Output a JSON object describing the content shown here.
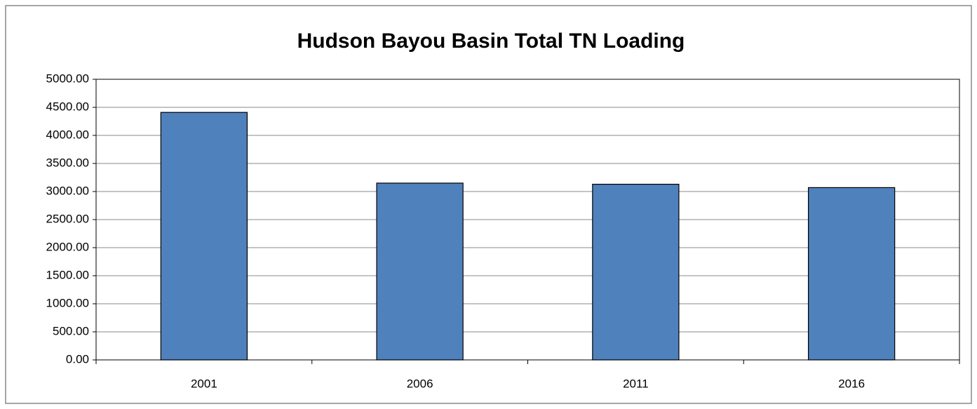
{
  "chart_data": {
    "type": "bar",
    "title": "Hudson Bayou Basin Total TN Loading",
    "categories": [
      "2001",
      "2006",
      "2011",
      "2016"
    ],
    "values": [
      4410,
      3150,
      3130,
      3070
    ],
    "color": "#4f81bd",
    "ylim": [
      0,
      5000
    ],
    "yticks": [
      {
        "value": 0,
        "label": "0.00"
      },
      {
        "value": 500,
        "label": "500.00"
      },
      {
        "value": 1000,
        "label": "1000.00"
      },
      {
        "value": 1500,
        "label": "1500.00"
      },
      {
        "value": 2000,
        "label": "2000.00"
      },
      {
        "value": 2500,
        "label": "2500.00"
      },
      {
        "value": 3000,
        "label": "3000.00"
      },
      {
        "value": 3500,
        "label": "3500.00"
      },
      {
        "value": 4000,
        "label": "4000.00"
      },
      {
        "value": 4500,
        "label": "4500.00"
      },
      {
        "value": 5000,
        "label": "5000.00"
      }
    ],
    "grid": true
  }
}
